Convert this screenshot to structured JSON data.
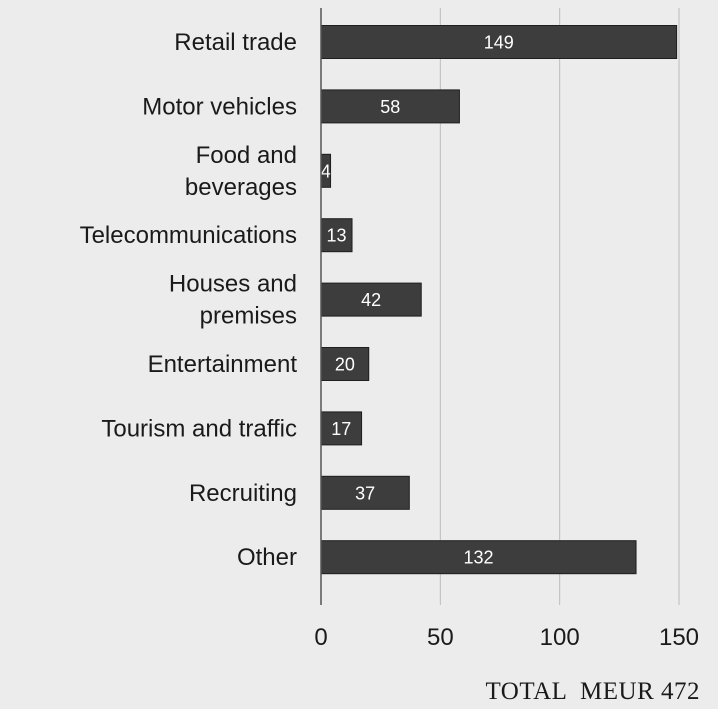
{
  "chart_data": {
    "type": "bar",
    "orientation": "horizontal",
    "categories": [
      [
        "Retail trade"
      ],
      [
        "Motor vehicles"
      ],
      [
        "Food and",
        "beverages"
      ],
      [
        "Telecommunications"
      ],
      [
        "Houses and",
        "premises"
      ],
      [
        "Entertainment"
      ],
      [
        "Tourism and traffic"
      ],
      [
        "Recruiting"
      ],
      [
        "Other"
      ]
    ],
    "values": [
      149,
      58,
      4,
      13,
      42,
      20,
      17,
      37,
      132
    ],
    "xlim": [
      0,
      150
    ],
    "xticks": [
      0,
      50,
      100,
      150
    ],
    "grid": "vertical",
    "bar_color": "#3d3d3d",
    "grid_color": "#bdbdbd",
    "legend": "none"
  },
  "footer": {
    "total_label": "TOTAL  MEUR 472"
  }
}
